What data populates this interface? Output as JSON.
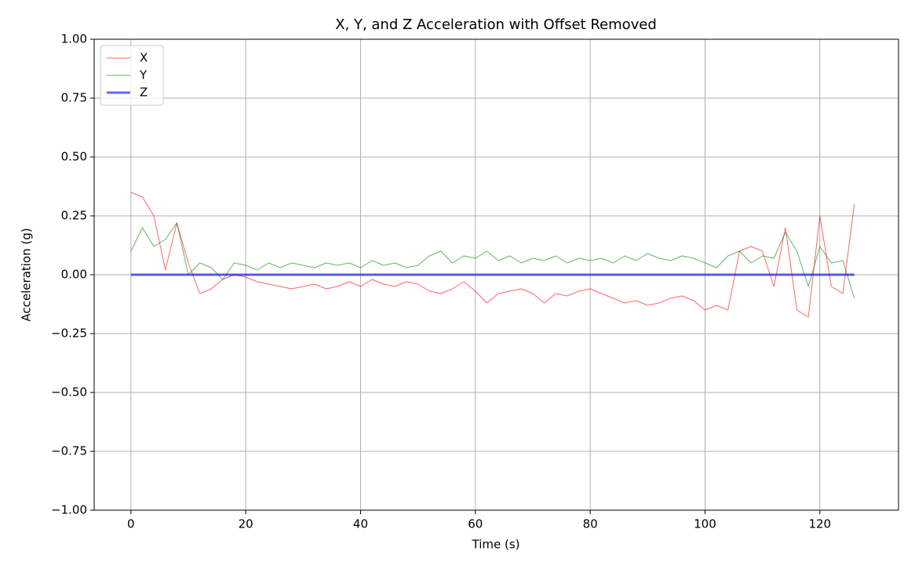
{
  "chart_data": {
    "type": "line",
    "title": "X, Y, and Z Acceleration with Offset Removed",
    "x_label": "Time (s)",
    "y_label": "Acceleration (g)",
    "x": [
      0,
      2,
      4,
      6,
      8,
      10,
      12,
      14,
      16,
      18,
      20,
      22,
      24,
      26,
      28,
      30,
      32,
      34,
      36,
      38,
      40,
      42,
      44,
      46,
      48,
      50,
      52,
      54,
      56,
      58,
      60,
      62,
      64,
      66,
      68,
      70,
      72,
      74,
      76,
      78,
      80,
      82,
      84,
      86,
      88,
      90,
      92,
      94,
      96,
      98,
      100,
      102,
      104,
      106,
      108,
      110,
      112,
      114,
      116,
      118,
      120,
      122,
      124,
      126
    ],
    "series": [
      {
        "name": "X",
        "color": "#ff0000",
        "width": 1,
        "values": [
          0.35,
          0.33,
          0.25,
          0.02,
          0.22,
          0.05,
          -0.08,
          -0.06,
          -0.02,
          0.0,
          -0.01,
          -0.03,
          -0.04,
          -0.05,
          -0.06,
          -0.05,
          -0.04,
          -0.06,
          -0.05,
          -0.03,
          -0.05,
          -0.02,
          -0.04,
          -0.05,
          -0.03,
          -0.04,
          -0.07,
          -0.08,
          -0.06,
          -0.03,
          -0.07,
          -0.12,
          -0.08,
          -0.07,
          -0.06,
          -0.08,
          -0.12,
          -0.08,
          -0.09,
          -0.07,
          -0.06,
          -0.08,
          -0.1,
          -0.12,
          -0.11,
          -0.13,
          -0.12,
          -0.1,
          -0.09,
          -0.11,
          -0.15,
          -0.13,
          -0.15,
          0.1,
          0.12,
          0.1,
          -0.05,
          0.2,
          -0.15,
          -0.18,
          0.25,
          -0.05,
          -0.08,
          0.3
        ]
      },
      {
        "name": "Y",
        "color": "#008000",
        "width": 1,
        "values": [
          0.1,
          0.2,
          0.12,
          0.15,
          0.22,
          0.0,
          0.05,
          0.03,
          -0.02,
          0.05,
          0.04,
          0.02,
          0.05,
          0.03,
          0.05,
          0.04,
          0.03,
          0.05,
          0.04,
          0.05,
          0.03,
          0.06,
          0.04,
          0.05,
          0.03,
          0.04,
          0.08,
          0.1,
          0.05,
          0.08,
          0.07,
          0.1,
          0.06,
          0.08,
          0.05,
          0.07,
          0.06,
          0.08,
          0.05,
          0.07,
          0.06,
          0.07,
          0.05,
          0.08,
          0.06,
          0.09,
          0.07,
          0.06,
          0.08,
          0.07,
          0.05,
          0.03,
          0.08,
          0.1,
          0.05,
          0.08,
          0.07,
          0.18,
          0.1,
          -0.05,
          0.12,
          0.05,
          0.06,
          -0.1
        ]
      },
      {
        "name": "Z",
        "color": "#0000ff",
        "width": 3,
        "values": [
          0,
          0,
          0,
          0,
          0,
          0,
          0,
          0,
          0,
          0,
          0,
          0,
          0,
          0,
          0,
          0,
          0,
          0,
          0,
          0,
          0,
          0,
          0,
          0,
          0,
          0,
          0,
          0,
          0,
          0,
          0,
          0,
          0,
          0,
          0,
          0,
          0,
          0,
          0,
          0,
          0,
          0,
          0,
          0,
          0,
          0,
          0,
          0,
          0,
          0,
          0,
          0,
          0,
          0,
          0,
          0,
          0,
          0,
          0,
          0,
          0,
          0,
          0,
          0
        ]
      }
    ],
    "xlim": [
      -6.4,
      133.7
    ],
    "ylim": [
      -1,
      1
    ],
    "xticks": [
      0,
      20,
      40,
      60,
      80,
      100,
      120
    ],
    "yticks": [
      {
        "value": -1,
        "label": "−1.00"
      },
      {
        "value": -0.75,
        "label": "−0.75"
      },
      {
        "value": -0.5,
        "label": "−0.50"
      },
      {
        "value": -0.25,
        "label": "−0.25"
      },
      {
        "value": 0,
        "label": "0.00"
      },
      {
        "value": 0.25,
        "label": "0.25"
      },
      {
        "value": 0.5,
        "label": "0.50"
      },
      {
        "value": 0.75,
        "label": "0.75"
      },
      {
        "value": 1,
        "label": "1.00"
      }
    ],
    "grid": true,
    "legend": "upper-left"
  }
}
